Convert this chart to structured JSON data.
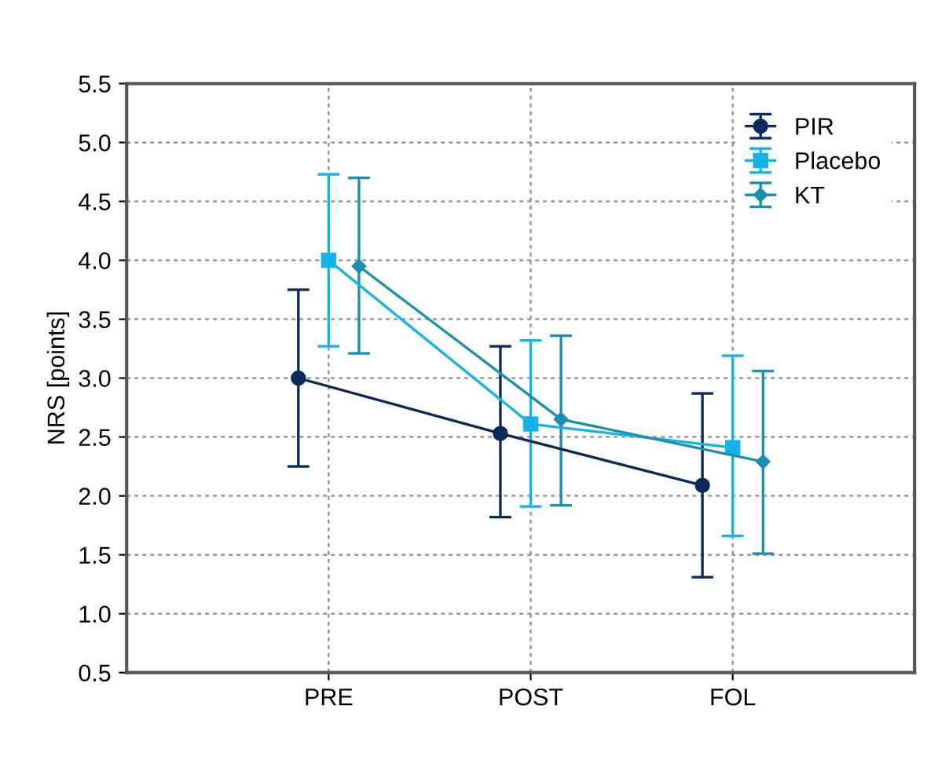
{
  "chart_data": {
    "type": "line",
    "ylabel": "NRS [points]",
    "categories": [
      "PRE",
      "POST",
      "FOL"
    ],
    "ylim": [
      0.5,
      5.5
    ],
    "yticks": [
      {
        "value": 0.5,
        "label": "0.5"
      },
      {
        "value": 1.0,
        "label": "1.0"
      },
      {
        "value": 1.5,
        "label": "1.5"
      },
      {
        "value": 2.0,
        "label": "2.0"
      },
      {
        "value": 2.5,
        "label": "2.5"
      },
      {
        "value": 3.0,
        "label": "3.0"
      },
      {
        "value": 3.5,
        "label": "3.5"
      },
      {
        "value": 4.0,
        "label": "4.0"
      },
      {
        "value": 4.5,
        "label": "4.5"
      },
      {
        "value": 5.0,
        "label": "5.0"
      },
      {
        "value": 5.5,
        "label": "5.5"
      }
    ],
    "grid": true,
    "legend": "top right",
    "series": [
      {
        "name": "PIR",
        "color": "#0a2a5a",
        "marker": "circle",
        "values": [
          3.0,
          2.53,
          2.09
        ],
        "errors": [
          [
            2.25,
            3.75
          ],
          [
            1.82,
            3.27
          ],
          [
            1.31,
            2.87
          ]
        ]
      },
      {
        "name": "Placebo",
        "color": "#14b4e8",
        "marker": "square",
        "values": [
          4.0,
          2.61,
          2.41
        ],
        "errors": [
          [
            3.27,
            4.73
          ],
          [
            1.91,
            3.32
          ],
          [
            1.66,
            3.19
          ]
        ]
      },
      {
        "name": "KT",
        "color": "#1a8fb0",
        "marker": "diamond",
        "values": [
          3.95,
          2.65,
          2.29
        ],
        "errors": [
          [
            3.21,
            4.7
          ],
          [
            1.92,
            3.36
          ],
          [
            1.51,
            3.06
          ]
        ]
      }
    ]
  }
}
